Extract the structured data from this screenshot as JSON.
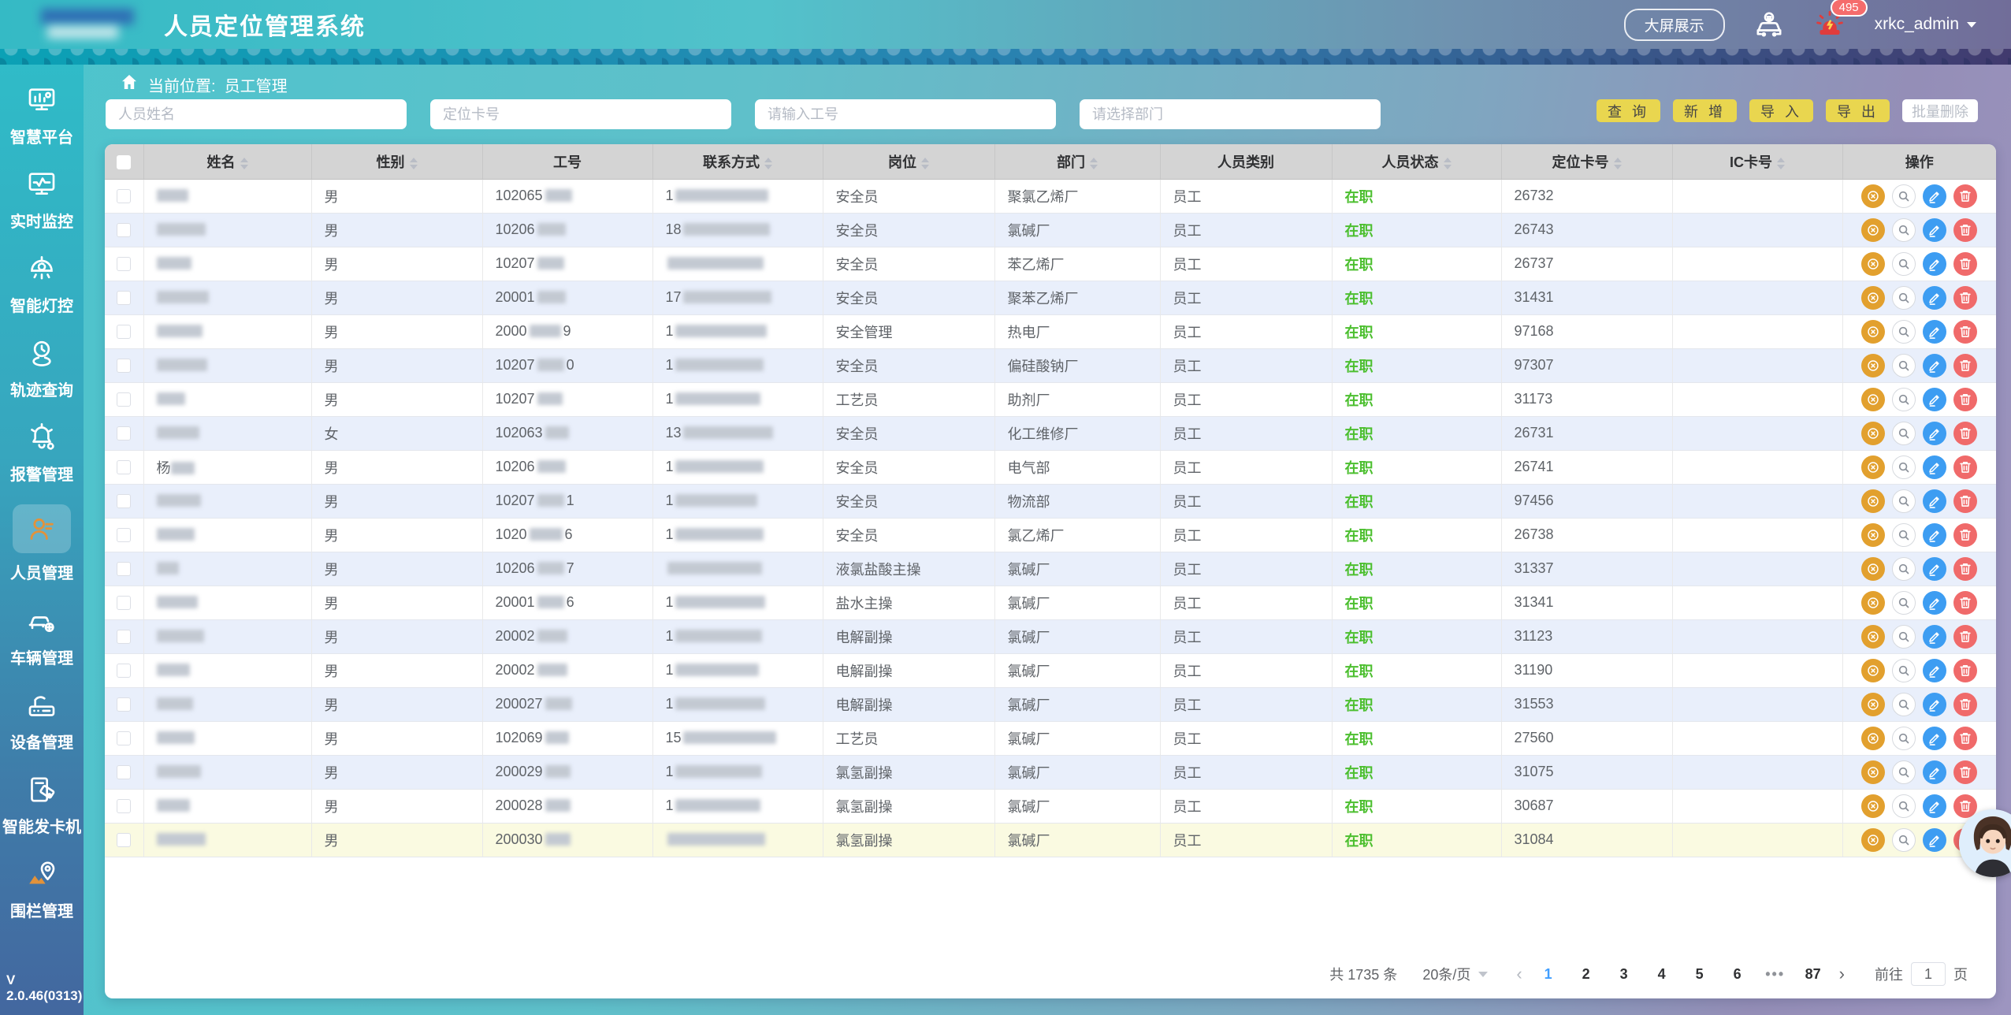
{
  "header": {
    "title": "人员定位管理系统",
    "big_screen_btn": "大屏展示",
    "badge_count": "495",
    "username": "xrkc_admin"
  },
  "sidebar": {
    "version": "V 2.0.46(0313)",
    "items": [
      {
        "label": "智慧平台",
        "icon": "smart-platform-icon",
        "active": false
      },
      {
        "label": "实时监控",
        "icon": "realtime-monitor-icon",
        "active": false
      },
      {
        "label": "智能灯控",
        "icon": "smart-light-icon",
        "active": false
      },
      {
        "label": "轨迹查询",
        "icon": "trajectory-query-icon",
        "active": false
      },
      {
        "label": "报警管理",
        "icon": "alarm-manage-icon",
        "active": false
      },
      {
        "label": "人员管理",
        "icon": "person-manage-icon",
        "active": true
      },
      {
        "label": "车辆管理",
        "icon": "vehicle-manage-icon",
        "active": false
      },
      {
        "label": "设备管理",
        "icon": "device-manage-icon",
        "active": false
      },
      {
        "label": "智能发卡机",
        "icon": "card-dispenser-icon",
        "active": false
      },
      {
        "label": "围栏管理",
        "icon": "fence-manage-icon",
        "active": false
      }
    ]
  },
  "breadcrumb": {
    "prefix": "当前位置:",
    "current": "员工管理"
  },
  "filters": {
    "name_placeholder": "人员姓名",
    "card_placeholder": "定位卡号",
    "workid_placeholder": "请输入工号",
    "dept_placeholder": "请选择部门"
  },
  "toolbar": {
    "search": "查 询",
    "add": "新 增",
    "import": "导 入",
    "export": "导 出",
    "batch_delete": "批量删除"
  },
  "table": {
    "columns": [
      {
        "label": "姓名",
        "sortable": true
      },
      {
        "label": "性别",
        "sortable": true
      },
      {
        "label": "工号",
        "sortable": false
      },
      {
        "label": "联系方式",
        "sortable": true
      },
      {
        "label": "岗位",
        "sortable": true
      },
      {
        "label": "部门",
        "sortable": true
      },
      {
        "label": "人员类别",
        "sortable": false
      },
      {
        "label": "人员状态",
        "sortable": true
      },
      {
        "label": "定位卡号",
        "sortable": true
      },
      {
        "label": "IC卡号",
        "sortable": true
      },
      {
        "label": "操作",
        "sortable": false
      }
    ],
    "rows": [
      {
        "name_pre": "",
        "name_w": 40,
        "gender": "男",
        "id_pre": "102065",
        "id_suf": "",
        "id_w": 34,
        "phone_pre": "1",
        "phone_w": 118,
        "post": "安全员",
        "dept": "聚氯乙烯厂",
        "category": "员工",
        "status": "在职",
        "card": "26732",
        "ic": "",
        "bg": "white"
      },
      {
        "name_pre": "",
        "name_w": 62,
        "gender": "男",
        "id_pre": "10206",
        "id_suf": "",
        "id_w": 36,
        "phone_pre": "18",
        "phone_w": 110,
        "post": "安全员",
        "dept": "氯碱厂",
        "category": "员工",
        "status": "在职",
        "card": "26743",
        "ic": "",
        "bg": "blue"
      },
      {
        "name_pre": "",
        "name_w": 44,
        "gender": "男",
        "id_pre": "10207",
        "id_suf": "",
        "id_w": 34,
        "phone_pre": "",
        "phone_w": 122,
        "post": "安全员",
        "dept": "苯乙烯厂",
        "category": "员工",
        "status": "在职",
        "card": "26737",
        "ic": "",
        "bg": "white"
      },
      {
        "name_pre": "",
        "name_w": 66,
        "gender": "男",
        "id_pre": "20001",
        "id_suf": "",
        "id_w": 36,
        "phone_pre": "17",
        "phone_w": 112,
        "post": "安全员",
        "dept": "聚苯乙烯厂",
        "category": "员工",
        "status": "在职",
        "card": "31431",
        "ic": "",
        "bg": "blue"
      },
      {
        "name_pre": "",
        "name_w": 58,
        "gender": "男",
        "id_pre": "2000",
        "id_suf": "9",
        "id_w": 40,
        "phone_pre": "1",
        "phone_w": 116,
        "post": "安全管理",
        "dept": "热电厂",
        "category": "员工",
        "status": "在职",
        "card": "97168",
        "ic": "",
        "bg": "white"
      },
      {
        "name_pre": "",
        "name_w": 64,
        "gender": "男",
        "id_pre": "10207",
        "id_suf": "0",
        "id_w": 34,
        "phone_pre": "1",
        "phone_w": 112,
        "post": "安全员",
        "dept": "偏硅酸钠厂",
        "category": "员工",
        "status": "在职",
        "card": "97307",
        "ic": "",
        "bg": "blue"
      },
      {
        "name_pre": "",
        "name_w": 36,
        "gender": "男",
        "id_pre": "10207",
        "id_suf": "",
        "id_w": 32,
        "phone_pre": "1",
        "phone_w": 108,
        "post": "工艺员",
        "dept": "助剂厂",
        "category": "员工",
        "status": "在职",
        "card": "31173",
        "ic": "",
        "bg": "white"
      },
      {
        "name_pre": "",
        "name_w": 54,
        "gender": "女",
        "id_pre": "102063",
        "id_suf": "",
        "id_w": 30,
        "phone_pre": "13",
        "phone_w": 114,
        "post": "安全员",
        "dept": "化工维修厂",
        "category": "员工",
        "status": "在职",
        "card": "26731",
        "ic": "",
        "bg": "blue"
      },
      {
        "name_pre": "杨",
        "name_w": 30,
        "gender": "男",
        "id_pre": "10206",
        "id_suf": "",
        "id_w": 36,
        "phone_pre": "1",
        "phone_w": 112,
        "post": "安全员",
        "dept": "电气部",
        "category": "员工",
        "status": "在职",
        "card": "26741",
        "ic": "",
        "bg": "white"
      },
      {
        "name_pre": "",
        "name_w": 56,
        "gender": "男",
        "id_pre": "10207",
        "id_suf": "1",
        "id_w": 34,
        "phone_pre": "1",
        "phone_w": 104,
        "post": "安全员",
        "dept": "物流部",
        "category": "员工",
        "status": "在职",
        "card": "97456",
        "ic": "",
        "bg": "blue"
      },
      {
        "name_pre": "",
        "name_w": 48,
        "gender": "男",
        "id_pre": "1020",
        "id_suf": "6",
        "id_w": 42,
        "phone_pre": "1",
        "phone_w": 112,
        "post": "安全员",
        "dept": "氯乙烯厂",
        "category": "员工",
        "status": "在职",
        "card": "26738",
        "ic": "",
        "bg": "white"
      },
      {
        "name_pre": "",
        "name_w": 28,
        "gender": "男",
        "id_pre": "10206",
        "id_suf": "7",
        "id_w": 34,
        "phone_pre": "",
        "phone_w": 120,
        "post": "液氯盐酸主操",
        "dept": "氯碱厂",
        "category": "员工",
        "status": "在职",
        "card": "31337",
        "ic": "",
        "bg": "blue"
      },
      {
        "name_pre": "",
        "name_w": 52,
        "gender": "男",
        "id_pre": "20001",
        "id_suf": "6",
        "id_w": 34,
        "phone_pre": "1",
        "phone_w": 114,
        "post": "盐水主操",
        "dept": "氯碱厂",
        "category": "员工",
        "status": "在职",
        "card": "31341",
        "ic": "",
        "bg": "white"
      },
      {
        "name_pre": "",
        "name_w": 60,
        "gender": "男",
        "id_pre": "20002",
        "id_suf": "",
        "id_w": 38,
        "phone_pre": "1",
        "phone_w": 110,
        "post": "电解副操",
        "dept": "氯碱厂",
        "category": "员工",
        "status": "在职",
        "card": "31123",
        "ic": "",
        "bg": "blue"
      },
      {
        "name_pre": "",
        "name_w": 42,
        "gender": "男",
        "id_pre": "20002",
        "id_suf": "",
        "id_w": 38,
        "phone_pre": "1",
        "phone_w": 106,
        "post": "电解副操",
        "dept": "氯碱厂",
        "category": "员工",
        "status": "在职",
        "card": "31190",
        "ic": "",
        "bg": "white"
      },
      {
        "name_pre": "",
        "name_w": 46,
        "gender": "男",
        "id_pre": "200027",
        "id_suf": "",
        "id_w": 34,
        "phone_pre": "1",
        "phone_w": 114,
        "post": "电解副操",
        "dept": "氯碱厂",
        "category": "员工",
        "status": "在职",
        "card": "31553",
        "ic": "",
        "bg": "blue"
      },
      {
        "name_pre": "",
        "name_w": 48,
        "gender": "男",
        "id_pre": "102069",
        "id_suf": "",
        "id_w": 30,
        "phone_pre": "15",
        "phone_w": 118,
        "post": "工艺员",
        "dept": "氯碱厂",
        "category": "员工",
        "status": "在职",
        "card": "27560",
        "ic": "",
        "bg": "white"
      },
      {
        "name_pre": "",
        "name_w": 56,
        "gender": "男",
        "id_pre": "200029",
        "id_suf": "",
        "id_w": 32,
        "phone_pre": "1",
        "phone_w": 110,
        "post": "氯氢副操",
        "dept": "氯碱厂",
        "category": "员工",
        "status": "在职",
        "card": "31075",
        "ic": "",
        "bg": "blue"
      },
      {
        "name_pre": "",
        "name_w": 42,
        "gender": "男",
        "id_pre": "200028",
        "id_suf": "",
        "id_w": 32,
        "phone_pre": "1",
        "phone_w": 108,
        "post": "氯氢副操",
        "dept": "氯碱厂",
        "category": "员工",
        "status": "在职",
        "card": "30687",
        "ic": "",
        "bg": "white"
      },
      {
        "name_pre": "",
        "name_w": 62,
        "gender": "男",
        "id_pre": "200030",
        "id_suf": "",
        "id_w": 32,
        "phone_pre": "",
        "phone_w": 124,
        "post": "氯氢副操",
        "dept": "氯碱厂",
        "category": "员工",
        "status": "在职",
        "card": "31084",
        "ic": "",
        "bg": "yellow"
      }
    ]
  },
  "pagination": {
    "total": "共 1735 条",
    "page_size": "20条/页",
    "pages": [
      "1",
      "2",
      "3",
      "4",
      "5",
      "6",
      "•••",
      "87"
    ],
    "active_page": "1",
    "goto_label": "前往",
    "goto_value": "1",
    "page_unit": "页"
  },
  "colors": {
    "accent_yellow": "#e9d64f",
    "status_green": "#4cbf2f",
    "active_page_blue": "#409eff",
    "op_orange": "#e2a02e",
    "op_blue": "#3d9df2",
    "op_red": "#f06a6a"
  }
}
